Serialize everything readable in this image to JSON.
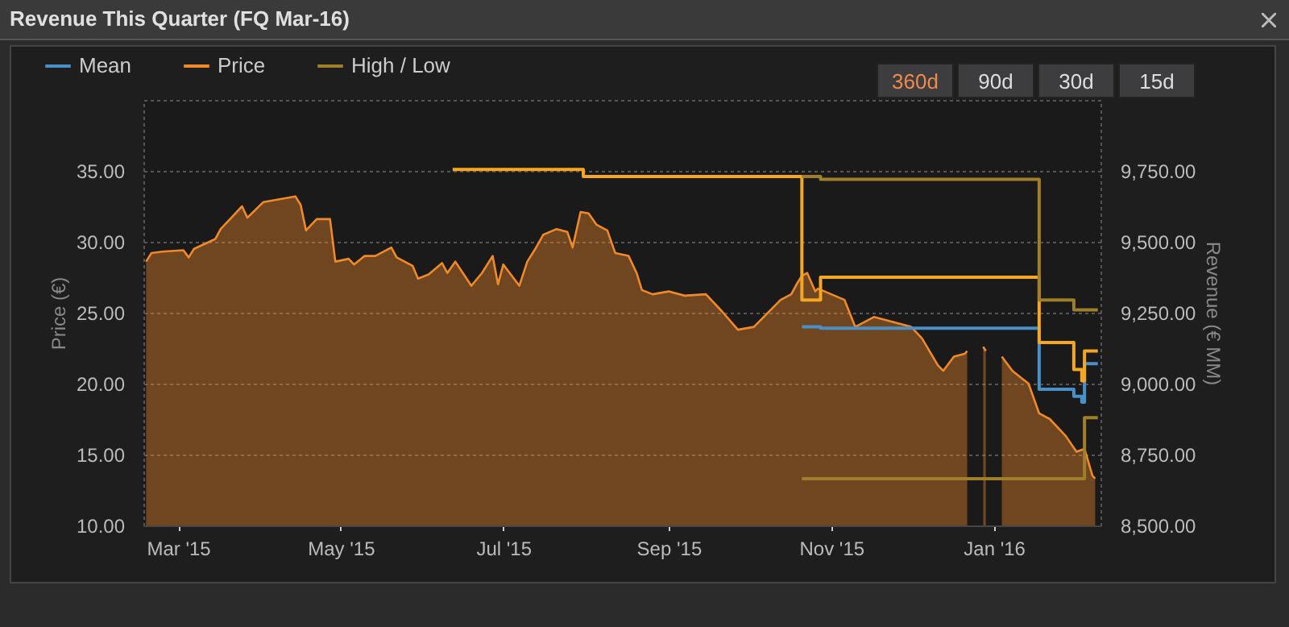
{
  "chart_data": {
    "type": "line",
    "title": "Revenue This Quarter (FQ Mar-16)",
    "ylabel": "Price (€)",
    "y2label": "Revenue (€ MM)",
    "xlim": [
      "2015-02-16",
      "2016-02-10"
    ],
    "xticks": [
      {
        "value": "2015-03-01",
        "label": "Mar '15"
      },
      {
        "value": "2015-05-01",
        "label": "May '15"
      },
      {
        "value": "2015-07-01",
        "label": "Jul '15"
      },
      {
        "value": "2015-09-01",
        "label": "Sep '15"
      },
      {
        "value": "2015-11-01",
        "label": "Nov '15"
      },
      {
        "value": "2016-01-01",
        "label": "Jan '16"
      }
    ],
    "ylim": [
      10,
      40
    ],
    "yticks": [
      {
        "value": 10,
        "label": "10.00"
      },
      {
        "value": 15,
        "label": "15.00"
      },
      {
        "value": 20,
        "label": "20.00"
      },
      {
        "value": 25,
        "label": "25.00"
      },
      {
        "value": 30,
        "label": "30.00"
      },
      {
        "value": 35,
        "label": "35.00"
      }
    ],
    "y2lim": [
      8500,
      10000
    ],
    "y2ticks": [
      {
        "value": 8500,
        "label": "8,500.00"
      },
      {
        "value": 8750,
        "label": "8,750.00"
      },
      {
        "value": 9000,
        "label": "9,000.00"
      },
      {
        "value": 9250,
        "label": "9,250.00"
      },
      {
        "value": 9500,
        "label": "9,500.00"
      },
      {
        "value": 9750,
        "label": "9,750.00"
      }
    ],
    "grid": "y",
    "legend": "top left",
    "annotations": [
      "360d",
      "90d",
      "30d",
      "15d"
    ],
    "series": [
      {
        "name": "Mean",
        "type": "step",
        "axis": "y2",
        "color": "#4a90c8",
        "x": [
          "2015-10-21",
          "2015-10-28",
          "2016-01-18",
          "2016-01-31",
          "2016-02-03",
          "2016-02-04",
          "2016-02-09"
        ],
        "values": [
          9200,
          9195,
          8980,
          8955,
          8935,
          9070,
          9070
        ]
      },
      {
        "type": "step",
        "axis": "y2",
        "color": "#f5a623",
        "x": [
          "2015-06-12",
          "2015-07-31",
          "2015-10-21",
          "2015-10-28",
          "2016-01-18",
          "2016-01-31",
          "2016-02-03",
          "2016-02-04",
          "2016-02-09"
        ],
        "values": [
          9755,
          9730,
          9295,
          9375,
          9145,
          9050,
          9010,
          9115,
          9115
        ]
      },
      {
        "name": "Price",
        "type": "area",
        "color": "#f0892a",
        "x": [
          "2015-02-17",
          "2015-02-19",
          "2015-02-23",
          "2015-03-03",
          "2015-03-05",
          "2015-03-07",
          "2015-03-15",
          "2015-03-17",
          "2015-03-21",
          "2015-03-25",
          "2015-03-27",
          "2015-04-02",
          "2015-04-08",
          "2015-04-14",
          "2015-04-16",
          "2015-04-18",
          "2015-04-22",
          "2015-04-27",
          "2015-04-29",
          "2015-05-04",
          "2015-05-06",
          "2015-05-10",
          "2015-05-14",
          "2015-05-20",
          "2015-05-22",
          "2015-05-28",
          "2015-05-30",
          "2015-06-03",
          "2015-06-08",
          "2015-06-10",
          "2015-06-13",
          "2015-06-19",
          "2015-06-23",
          "2015-06-27",
          "2015-06-29",
          "2015-07-01",
          "2015-07-07",
          "2015-07-10",
          "2015-07-13",
          "2015-07-16",
          "2015-07-21",
          "2015-07-25",
          "2015-07-27",
          "2015-07-30",
          "2015-08-02",
          "2015-08-05",
          "2015-08-09",
          "2015-08-12",
          "2015-08-17",
          "2015-08-20",
          "2015-08-22",
          "2015-08-26",
          "2015-09-01",
          "2015-09-07",
          "2015-09-15",
          "2015-09-21",
          "2015-09-27",
          "2015-10-03",
          "2015-10-13",
          "2015-10-17",
          "2015-10-19",
          "2015-10-21",
          "2015-10-23",
          "2015-10-26",
          "2015-10-27",
          "2015-11-06",
          "2015-11-10",
          "2015-11-17",
          "2015-12-01",
          "2015-12-05",
          "2015-12-11",
          "2015-12-13",
          "2015-12-17",
          "2015-12-21",
          "2015-12-22",
          "2015-12-23",
          "2015-12-28",
          "2015-12-29",
          "2015-12-30",
          "2016-01-04",
          "2016-01-08",
          "2016-01-14",
          "2016-01-18",
          "2016-01-22",
          "2016-01-28",
          "2016-02-01",
          "2016-02-04",
          "2016-02-07",
          "2016-02-08"
        ],
        "values": [
          28.6,
          29.2,
          29.3,
          29.4,
          28.9,
          29.5,
          30.2,
          30.9,
          31.7,
          32.5,
          31.7,
          32.8,
          33.0,
          33.2,
          32.6,
          30.8,
          31.6,
          31.6,
          28.6,
          28.8,
          28.4,
          29.0,
          29.0,
          29.6,
          28.9,
          28.3,
          27.4,
          27.7,
          28.5,
          27.8,
          28.6,
          26.9,
          27.8,
          29.0,
          27.0,
          28.4,
          26.9,
          28.6,
          29.5,
          30.5,
          30.9,
          30.7,
          29.6,
          32.1,
          32.0,
          31.2,
          30.8,
          29.2,
          29.0,
          27.8,
          26.6,
          26.3,
          26.5,
          26.2,
          26.3,
          25.1,
          23.8,
          24.0,
          25.9,
          26.3,
          27.0,
          27.6,
          27.8,
          26.5,
          26.7,
          25.9,
          24.0,
          24.7,
          24.0,
          23.2,
          21.3,
          20.9,
          21.9,
          22.1,
          22.3,
          null,
          22.6,
          22.3,
          null,
          21.9,
          20.9,
          20.0,
          17.9,
          17.5,
          16.3,
          15.2,
          15.4,
          13.5,
          13.3
        ]
      },
      {
        "name": "High / Low",
        "type": "step",
        "axis": "y2",
        "color": "#a07f2a",
        "x": [
          "2015-10-21",
          "2015-10-28",
          "2016-01-18",
          "2016-01-31",
          "2016-02-09"
        ],
        "values": [
          9730,
          9720,
          9295,
          9260,
          9260
        ]
      },
      {
        "type": "step",
        "axis": "y2",
        "color": "#a07f2a",
        "x": [
          "2015-10-21",
          "2016-02-04",
          "2016-02-09"
        ],
        "values": [
          8665,
          8880,
          8880
        ]
      }
    ]
  }
}
